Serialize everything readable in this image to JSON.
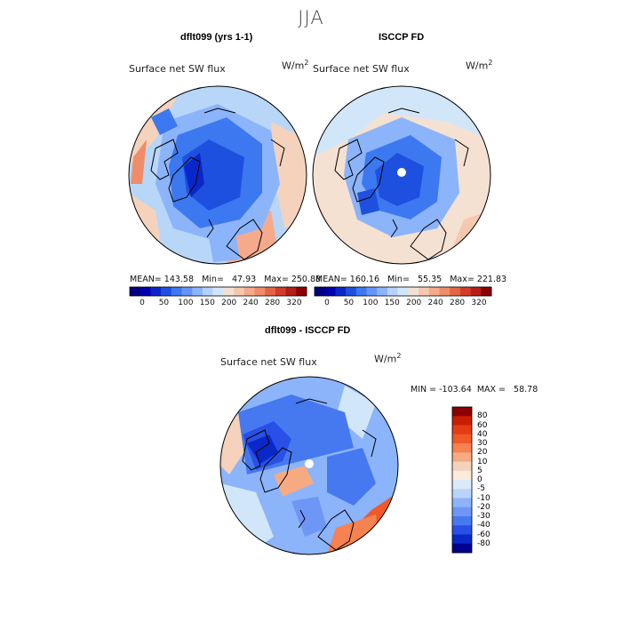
{
  "season": "JJA",
  "panels": [
    {
      "title": "dflt099 (yrs 1-1)",
      "variable": "Surface net SW flux",
      "unit_base": "W/m",
      "unit_exp": "2",
      "stats_text": "MEAN= 143.58   Min=   47.93   Max= 250.88"
    },
    {
      "title": "ISCCP FD",
      "variable": "Surface net SW flux",
      "unit_base": "W/m",
      "unit_exp": "2",
      "stats_text": "MEAN= 160.16   Min=   55.35   Max= 221.83"
    }
  ],
  "diff_panel": {
    "title": "dflt099 - ISCCP FD",
    "variable": "Surface net SW flux",
    "unit_base": "W/m",
    "unit_exp": "2",
    "minmax_text": "MIN = -103.64  MAX =   58.78"
  },
  "colorbar_abs": {
    "colors": [
      "#000080",
      "#0000b0",
      "#0a26c8",
      "#1e50e0",
      "#3c78f0",
      "#6496fa",
      "#8cb4fa",
      "#b4d2fa",
      "#d2e6fa",
      "#f5e1d2",
      "#f5c8af",
      "#f5aa8c",
      "#f08c69",
      "#e66446",
      "#d23c28",
      "#b41e14",
      "#8c0000"
    ],
    "tick_labels": [
      "0",
      "50",
      "100",
      "150",
      "200",
      "240",
      "280",
      "320"
    ]
  },
  "colorbar_diff": {
    "colors": [
      "#8c0000",
      "#c81e00",
      "#e63c14",
      "#f05a28",
      "#f58250",
      "#f5aa82",
      "#f5d2bc",
      "#faebdc",
      "#dceaf8",
      "#b9d4fa",
      "#8cb4fa",
      "#6e96f5",
      "#4678f0",
      "#2850e6",
      "#0a28c8",
      "#000090"
    ],
    "tick_labels": [
      "80",
      "60",
      "40",
      "30",
      "20",
      "10",
      "5",
      "0",
      "-5",
      "-10",
      "-20",
      "-30",
      "-40",
      "-60",
      "-80"
    ]
  }
}
